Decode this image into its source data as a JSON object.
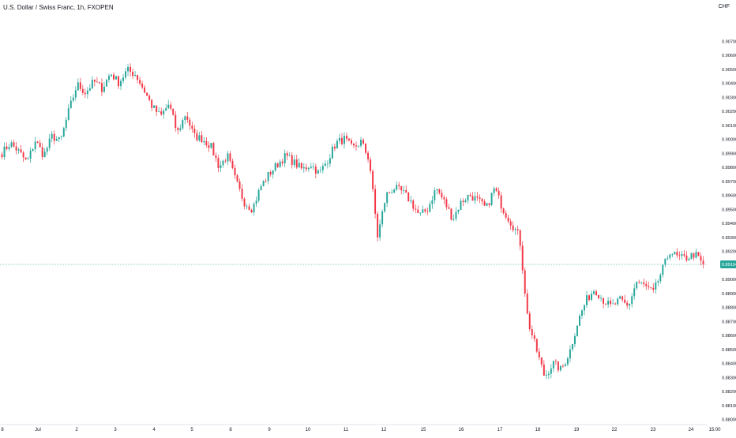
{
  "header": {
    "title": "U.S. Dollar / Swiss Franc, 1h, FXOPEN",
    "currency": "CHF"
  },
  "colors": {
    "up": "#26a69a",
    "down": "#f23645",
    "price_line": "#26a69a",
    "axis_text": "#131722",
    "background": "#ffffff"
  },
  "chart_data": {
    "type": "candlestick",
    "symbol": "U.S. Dollar / Swiss Franc",
    "interval": "1h",
    "source": "FXOPEN",
    "currency": "CHF",
    "ylim": [
      0.88,
      0.908
    ],
    "y_ticks": [
      "0.90700",
      "0.90600",
      "0.90500",
      "0.90400",
      "0.90300",
      "0.90200",
      "0.90100",
      "0.90000",
      "0.89900",
      "0.89800",
      "0.89700",
      "0.89600",
      "0.89500",
      "0.89400",
      "0.89300",
      "0.89200",
      "0.89100",
      "0.89000",
      "0.88900",
      "0.88800",
      "0.88700",
      "0.88600",
      "0.88500",
      "0.88400",
      "0.88300",
      "0.88200",
      "0.88100",
      "0.88000"
    ],
    "x_ticks": [
      "8",
      "Jul",
      "2",
      "3",
      "4",
      "5",
      "8",
      "9",
      "10",
      "11",
      "12",
      "15",
      "16",
      "17",
      "18",
      "19",
      "22",
      "23",
      "24",
      "15:00"
    ],
    "current_price": "0.89104",
    "current_price_value": 0.89104,
    "grid": false,
    "legend": "none",
    "anchors": [
      0.899,
      0.8997,
      0.8991,
      0.8983,
      0.8999,
      0.8988,
      0.9002,
      0.8998,
      0.902,
      0.9039,
      0.9033,
      0.9041,
      0.9036,
      0.9047,
      0.904,
      0.9049,
      0.9046,
      0.9035,
      0.9023,
      0.9016,
      0.9025,
      0.9004,
      0.9018,
      0.9002,
      0.9,
      0.8995,
      0.898,
      0.8988,
      0.897,
      0.8955,
      0.895,
      0.8966,
      0.8975,
      0.8982,
      0.8988,
      0.8983,
      0.8978,
      0.8982,
      0.8975,
      0.8985,
      0.8997,
      0.9,
      0.8993,
      0.8998,
      0.8985,
      0.893,
      0.896,
      0.8965,
      0.8962,
      0.8955,
      0.8945,
      0.895,
      0.8965,
      0.8955,
      0.8943,
      0.8955,
      0.896,
      0.8956,
      0.895,
      0.8965,
      0.895,
      0.894,
      0.893,
      0.887,
      0.885,
      0.883,
      0.884,
      0.8835,
      0.8848,
      0.887,
      0.8885,
      0.8893,
      0.8885,
      0.888,
      0.8885,
      0.888,
      0.8898,
      0.8895,
      0.889,
      0.8905,
      0.892,
      0.8915,
      0.8915,
      0.8918,
      0.891
    ]
  }
}
